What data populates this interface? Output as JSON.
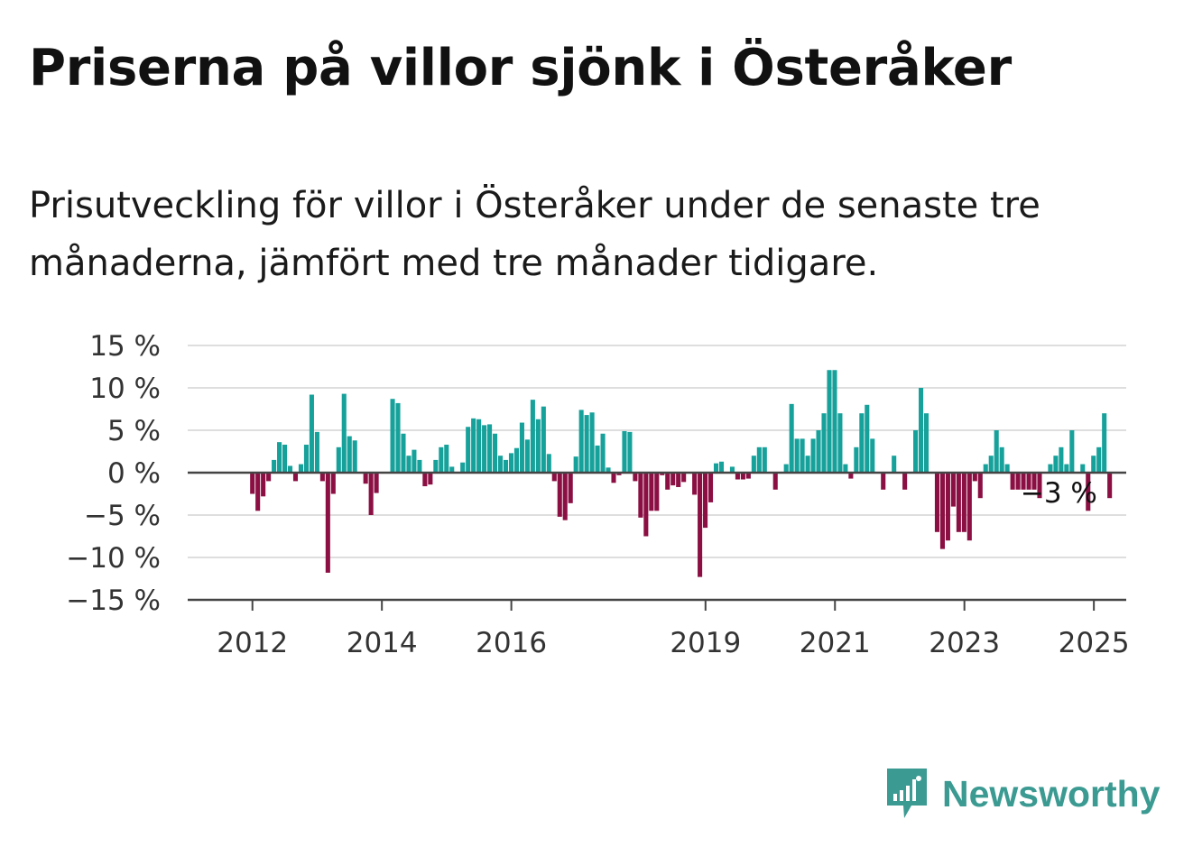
{
  "title": "Priserna på villor sjönk i Österåker",
  "subtitle": "Prisutveckling för villor i Österåker under de senaste tre månaderna, jämfört med tre månader tidigare.",
  "brand": {
    "name": "Newsworthy",
    "icon": "newsworthy-logo-icon",
    "color": "#3b9a92"
  },
  "chart_data": {
    "type": "bar",
    "ylim": [
      -15,
      15
    ],
    "y_ticks": [
      15,
      10,
      5,
      0,
      -5,
      -10,
      -15
    ],
    "y_tick_labels": [
      "15 %",
      "10 %",
      "5 %",
      "0 %",
      "−5 %",
      "−10 %",
      "−15 %"
    ],
    "x_start": 2011.0,
    "x_step": 0.0833,
    "x_ticks": [
      2012,
      2014,
      2016,
      2019,
      2021,
      2023,
      2025
    ],
    "x_tick_labels": [
      "2012",
      "2014",
      "2016",
      "2019",
      "2021",
      "2023",
      "2025"
    ],
    "positive_color": "#16a19b",
    "negative_color": "#8b0f43",
    "grid": true,
    "annotation": {
      "text": "−3 %",
      "index": 162
    },
    "values": [
      0,
      0,
      0,
      0,
      0,
      0,
      0,
      0,
      0,
      0,
      0,
      0,
      -2.5,
      -4.5,
      -2.8,
      -1,
      1.5,
      3.6,
      3.3,
      0.8,
      -1,
      1,
      3.3,
      9.2,
      4.8,
      -1,
      -11.8,
      -2.5,
      3,
      9.3,
      4.3,
      3.8,
      0,
      -1.3,
      -5,
      -2.4,
      0,
      0,
      8.7,
      8.2,
      4.6,
      2,
      2.7,
      1.5,
      -1.6,
      -1.4,
      1.5,
      3,
      3.3,
      0.7,
      0,
      1.2,
      5.4,
      6.4,
      6.3,
      5.6,
      5.7,
      4.6,
      2,
      1.5,
      2.3,
      2.9,
      5.9,
      3.9,
      8.6,
      6.3,
      7.8,
      2.2,
      -1,
      -5.2,
      -5.6,
      -3.6,
      1.9,
      7.4,
      6.8,
      7.1,
      3.2,
      4.6,
      0.6,
      -1.2,
      -0.3,
      4.9,
      4.8,
      -1,
      -5.3,
      -7.5,
      -4.5,
      -4.5,
      -0.3,
      -2,
      -1.5,
      -1.7,
      -1.1,
      0,
      -2.6,
      -12.3,
      -6.5,
      -3.5,
      1.1,
      1.3,
      0.1,
      0.7,
      -0.8,
      -0.8,
      -0.7,
      2,
      3,
      3,
      0,
      -2,
      0,
      1,
      8.1,
      4,
      4,
      2,
      4,
      5,
      7,
      12.1,
      12.1,
      7,
      1,
      -0.7,
      3,
      7,
      8,
      4,
      0,
      -2,
      0,
      2,
      0,
      -2,
      0,
      5,
      10,
      7,
      0,
      -7,
      -9,
      -8,
      -4,
      -7,
      -7,
      -8,
      -1,
      -3,
      1,
      2,
      5,
      3,
      1,
      -2,
      -2,
      -2,
      -2,
      -2,
      -3,
      0,
      1,
      2,
      3,
      1,
      5,
      0,
      1,
      -4.5,
      2,
      3,
      7,
      -3
    ]
  }
}
